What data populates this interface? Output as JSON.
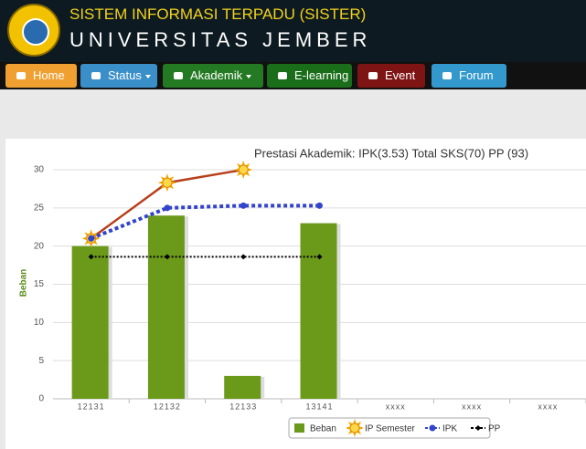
{
  "header": {
    "title": "SISTEM INFORMASI TERPADU (SISTER)",
    "subtitle": "UNIVERSITAS JEMBER"
  },
  "nav": [
    "Home",
    "Status",
    "Akademik",
    "E-learning",
    "Event",
    "Forum"
  ],
  "chart_data": {
    "type": "combo",
    "title": "Prestasi Akademik: IPK(3.53) Total SKS(70) PP (93)",
    "y_label": "Beban",
    "categories": [
      "12131",
      "12132",
      "12133",
      "13141",
      "xxxx",
      "xxxx",
      "xxxx"
    ],
    "ylim": [
      0,
      30
    ],
    "yticks": [
      0,
      5,
      10,
      15,
      20,
      25,
      30
    ],
    "grid": true,
    "series": [
      {
        "name": "Beban",
        "type": "bar",
        "color": "#6b9a1a",
        "values": [
          20,
          24,
          3,
          23,
          null,
          null,
          null
        ]
      },
      {
        "name": "IP Semester",
        "type": "line",
        "marker": "sun",
        "color": "#b8401c",
        "values": [
          21,
          28.3,
          30,
          null,
          null,
          null,
          null
        ]
      },
      {
        "name": "IPK",
        "type": "line",
        "marker": "circle",
        "dashed": true,
        "color": "#3344cc",
        "values": [
          21,
          25,
          25.3,
          25.3,
          null,
          null,
          null
        ]
      },
      {
        "name": "PP",
        "type": "line",
        "marker": "diamond",
        "dashed": true,
        "color": "#000000",
        "values": [
          18.6,
          18.6,
          18.6,
          18.6,
          null,
          null,
          null
        ]
      }
    ]
  }
}
